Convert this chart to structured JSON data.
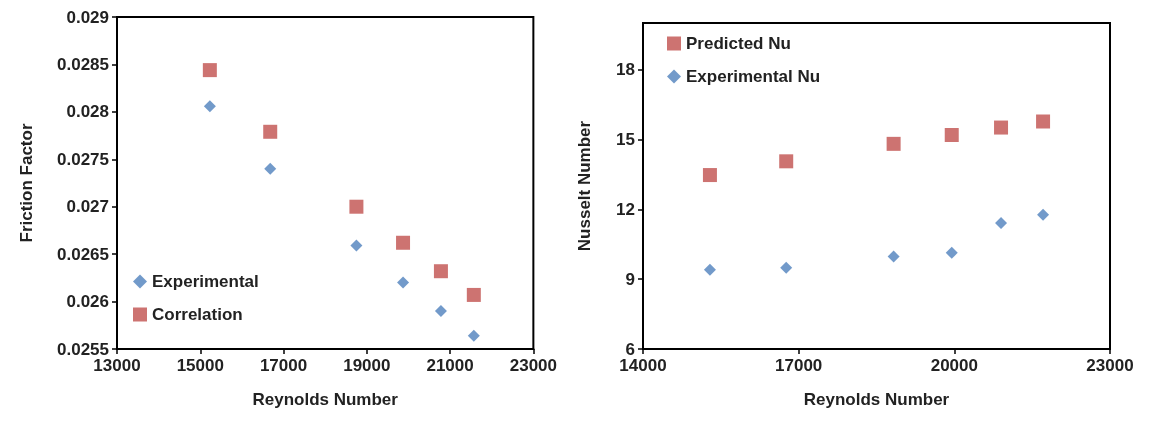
{
  "chart_data": [
    {
      "type": "scatter",
      "xlabel": "Reynolds Number",
      "ylabel": "Friction Factor",
      "xlim": [
        13000,
        23000
      ],
      "xticks": [
        13000,
        15000,
        17000,
        19000,
        21000,
        23000
      ],
      "ylim": [
        0.0255,
        0.029
      ],
      "yticks": [
        0.0255,
        0.026,
        0.0265,
        0.027,
        0.0275,
        0.028,
        0.0285,
        0.029
      ],
      "grid": false,
      "legend": "bottom left",
      "series": [
        {
          "name": "Experimental",
          "color": "#4f81bd",
          "marker": "diamond",
          "x": [
            15230,
            16680,
            18750,
            19870,
            20780,
            21570
          ],
          "values": [
            0.02806,
            0.0274,
            0.02659,
            0.0262,
            0.0259,
            0.02564
          ]
        },
        {
          "name": "Correlation",
          "color": "#c0504d",
          "marker": "square",
          "x": [
            15230,
            16680,
            18750,
            19870,
            20780,
            21570
          ],
          "values": [
            0.02844,
            0.02779,
            0.027,
            0.02662,
            0.02632,
            0.02607
          ]
        }
      ]
    },
    {
      "type": "scatter",
      "xlabel": "Reynolds Number",
      "ylabel": "Nusselt Number",
      "xlim": [
        14000,
        23000
      ],
      "xticks": [
        14000,
        17000,
        20000,
        23000
      ],
      "ylim": [
        6,
        20
      ],
      "yticks": [
        6,
        9,
        12,
        15,
        18
      ],
      "grid": false,
      "legend": "top left",
      "series": [
        {
          "name": "Predicted Nu",
          "color": "#c0504d",
          "marker": "square",
          "x": [
            15290,
            16760,
            18830,
            19950,
            20900,
            21710
          ],
          "values": [
            13.47,
            14.06,
            14.81,
            15.19,
            15.51,
            15.77
          ]
        },
        {
          "name": "Experimental Nu",
          "color": "#4f81bd",
          "marker": "diamond",
          "x": [
            15290,
            16760,
            18830,
            19950,
            20900,
            21710
          ],
          "values": [
            9.4,
            9.49,
            9.97,
            10.13,
            11.41,
            11.76
          ]
        }
      ]
    }
  ]
}
